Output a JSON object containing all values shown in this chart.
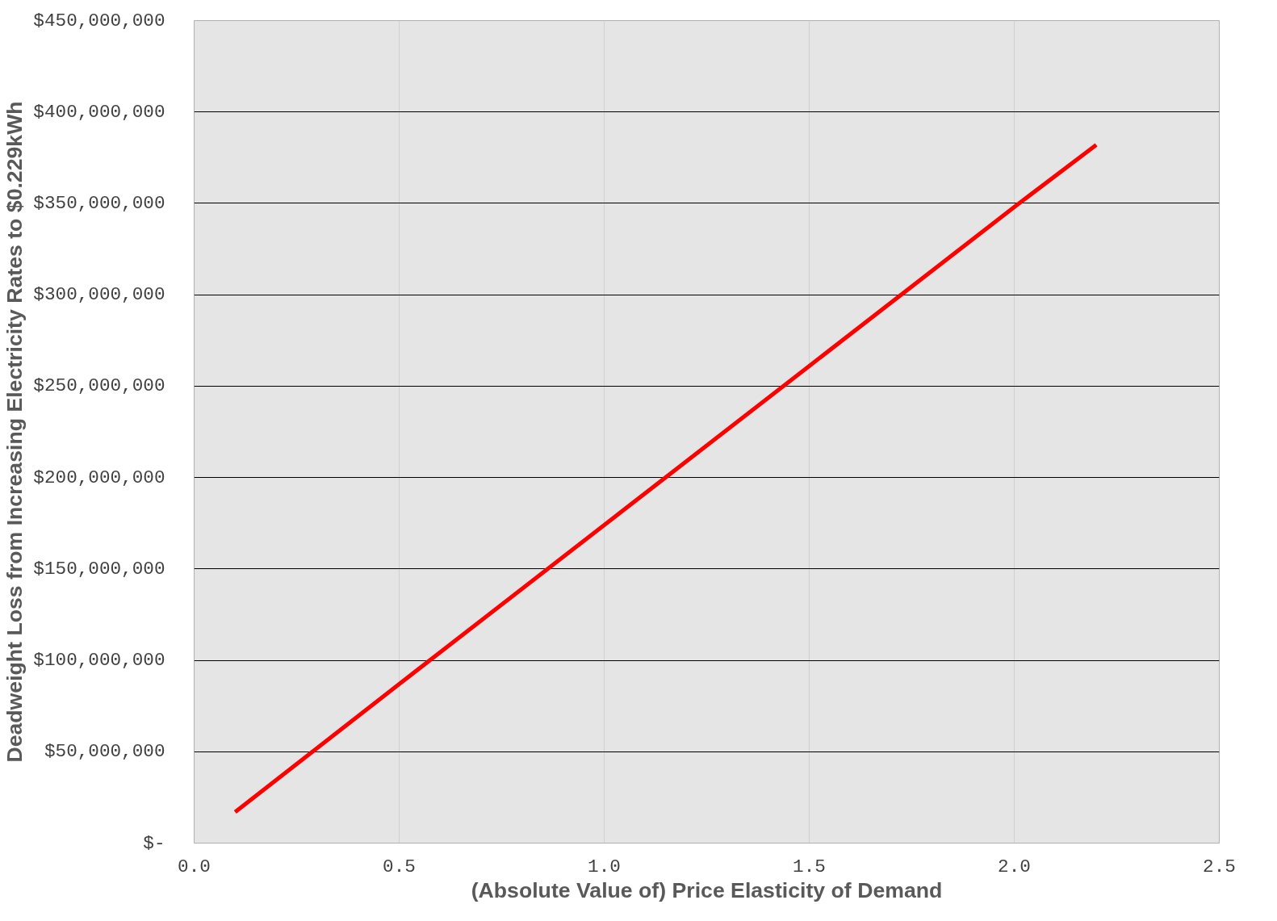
{
  "chart_data": {
    "type": "line",
    "xlabel": "(Absolute Value of) Price Elasticity of Demand",
    "ylabel": "Deadweight Loss from Increasing Electricity Rates to $0.229kWh",
    "x": [
      0.1,
      0.5,
      1.0,
      1.5,
      2.0,
      2.2
    ],
    "series": [
      {
        "color": "#ff0000",
        "values": [
          17000000,
          87000000,
          174000000,
          261000000,
          348000000,
          382000000
        ]
      }
    ],
    "xlim": [
      0,
      2.5
    ],
    "ylim": [
      0,
      450000000
    ],
    "xticks": [
      {
        "value": 0,
        "label": "0.0"
      },
      {
        "value": 0.5,
        "label": "0.5"
      },
      {
        "value": 1,
        "label": "1.0"
      },
      {
        "value": 1.5,
        "label": "1.5"
      },
      {
        "value": 2,
        "label": "2.0"
      },
      {
        "value": 2.5,
        "label": "2.5"
      }
    ],
    "yticks": [
      {
        "value": 0,
        "label": "$-"
      },
      {
        "value": 50000000,
        "label": "$50,000,000"
      },
      {
        "value": 100000000,
        "label": "$100,000,000"
      },
      {
        "value": 150000000,
        "label": "$150,000,000"
      },
      {
        "value": 200000000,
        "label": "$200,000,000"
      },
      {
        "value": 250000000,
        "label": "$250,000,000"
      },
      {
        "value": 300000000,
        "label": "$300,000,000"
      },
      {
        "value": 350000000,
        "label": "$350,000,000"
      },
      {
        "value": 400000000,
        "label": "$400,000,000"
      },
      {
        "value": 450000000,
        "label": "$450,000,000"
      }
    ],
    "grid": true,
    "marker": "none",
    "line_style": "solid"
  }
}
